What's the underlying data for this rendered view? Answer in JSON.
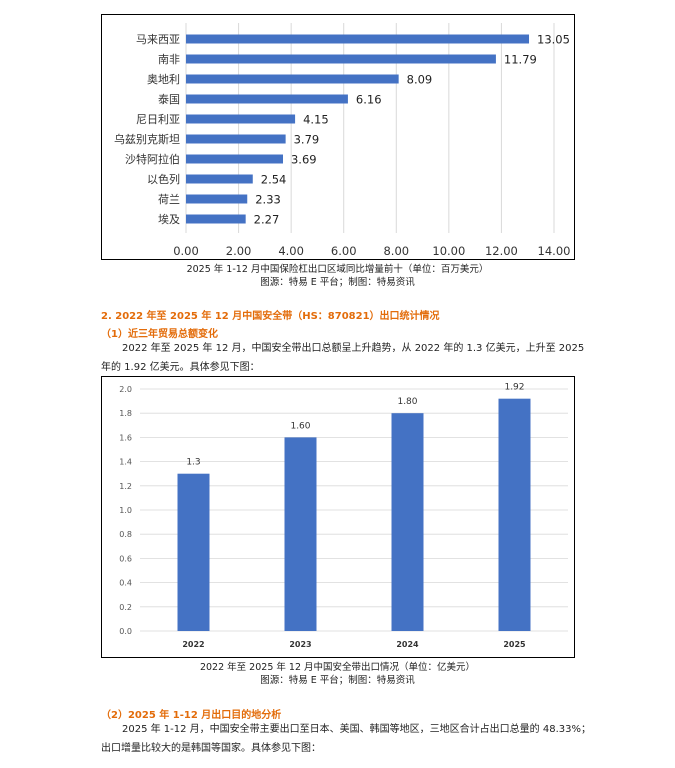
{
  "chart_data": [
    {
      "type": "bar",
      "orientation": "horizontal",
      "categories": [
        "马来西亚",
        "南非",
        "奥地利",
        "泰国",
        "尼日利亚",
        "乌兹别克斯坦",
        "沙特阿拉伯",
        "以色列",
        "荷兰",
        "埃及"
      ],
      "values": [
        13.05,
        11.79,
        8.09,
        6.16,
        4.15,
        3.79,
        3.69,
        2.54,
        2.33,
        2.27
      ],
      "value_labels": [
        "13.05",
        "11.79",
        "8.09",
        "6.16",
        "4.15",
        "3.79",
        "3.69",
        "2.54",
        "2.33",
        "2.27"
      ],
      "xticks": [
        "0.00",
        "2.00",
        "4.00",
        "6.00",
        "8.00",
        "10.00",
        "12.00",
        "14.00"
      ],
      "xlim": [
        0,
        14
      ],
      "grid": true,
      "bar_color": "#4472c4"
    },
    {
      "type": "bar",
      "orientation": "vertical",
      "categories": [
        "2022",
        "2023",
        "2024",
        "2025"
      ],
      "values": [
        1.3,
        1.6,
        1.8,
        1.92
      ],
      "value_labels": [
        "1.3",
        "1.60",
        "1.80",
        "1.92"
      ],
      "yticks": [
        "0.0",
        "0.2",
        "0.4",
        "0.6",
        "0.8",
        "1.0",
        "1.2",
        "1.4",
        "1.6",
        "1.8",
        "2.0"
      ],
      "ylim": [
        0,
        2.0
      ],
      "grid": true,
      "bar_color": "#4472c4"
    }
  ],
  "captions": {
    "chart1_title": "2025 年 1-12 月中国保险杠出口区域同比增量前十（单位：百万美元）",
    "chart1_source": "图源：特易 E 平台；制图：特易资讯",
    "chart2_title": "2022 年至 2025 年 12 月中国安全带出口情况（单位：亿美元）",
    "chart2_source": "图源：特易 E 平台；制图：特易资讯"
  },
  "section2": {
    "heading": "2. 2022 年至 2025 年 12 月中国安全带（HS：870821）出口统计情况",
    "sub1": "（1）近三年贸易总额变化",
    "para1_line1": "2022 年至 2025 年 12 月，中国安全带出口总额呈上升趋势，从 2022 年的 1.3 亿美元，上升至 2025",
    "para1_line2": "年的 1.92 亿美元。具体参见下图：",
    "sub2": "（2）2025 年 1-12 月出口目的地分析",
    "para2_line1": "2025 年 1-12 月，中国安全带主要出口至日本、美国、韩国等地区，三地区合计占出口总量的 48.33%；",
    "para2_line2": "出口增量比较大的是韩国等国家。具体参见下图："
  },
  "colors": {
    "accent_heading": "#e36c0a",
    "bar": "#4472c4",
    "grid": "#d9d9d9"
  }
}
